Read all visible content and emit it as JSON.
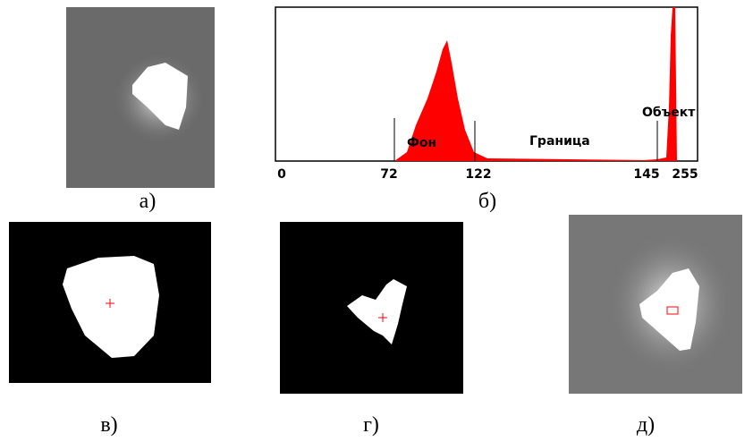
{
  "figure": {
    "captions": [
      "а)",
      "б)",
      "в)",
      "г)",
      "д)"
    ],
    "histogram": {
      "ticks": [
        0,
        72,
        122,
        145,
        255
      ],
      "regions": {
        "background": "Фон",
        "border": "Граница",
        "object": "Объект"
      }
    }
  }
}
